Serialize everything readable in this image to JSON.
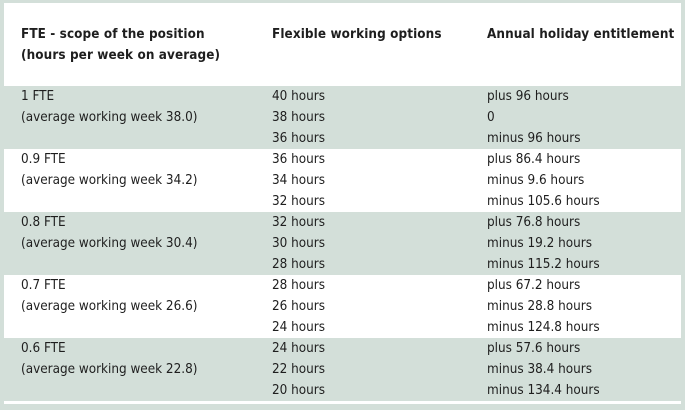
{
  "header": {
    "fte_line1": "FTE - scope of the position",
    "fte_line2": "(hours per week on average)",
    "flex": "Flexible working options",
    "holiday": "Annual holiday entitlement"
  },
  "rows": [
    {
      "fte": "1 FTE",
      "avg": "(average working week 38.0)",
      "hours": [
        "40 hours",
        "38 hours",
        "36 hours"
      ],
      "holiday": [
        "plus 96 hours",
        "0",
        "minus 96 hours"
      ]
    },
    {
      "fte": "0.9 FTE",
      "avg": "(average working week 34.2)",
      "hours": [
        "36 hours",
        "34 hours",
        "32 hours"
      ],
      "holiday": [
        "plus 86.4 hours",
        "minus 9.6 hours",
        "minus 105.6 hours"
      ]
    },
    {
      "fte": "0.8 FTE",
      "avg": "(average working week 30.4)",
      "hours": [
        "32 hours",
        "30 hours",
        "28 hours"
      ],
      "holiday": [
        "plus 76.8 hours",
        "minus 19.2 hours",
        "minus 115.2 hours"
      ]
    },
    {
      "fte": "0.7 FTE",
      "avg": "(average working week 26.6)",
      "hours": [
        "28 hours",
        "26 hours",
        "24 hours"
      ],
      "holiday": [
        "plus 67.2 hours",
        "minus 28.8 hours",
        "minus 124.8 hours"
      ]
    },
    {
      "fte": "0.6 FTE",
      "avg": "(average working week 22.8)",
      "hours": [
        "24 hours",
        "22 hours",
        "20 hours"
      ],
      "holiday": [
        "plus 57.6 hours",
        "minus 38.4 hours",
        "minus 134.4 hours"
      ]
    }
  ]
}
